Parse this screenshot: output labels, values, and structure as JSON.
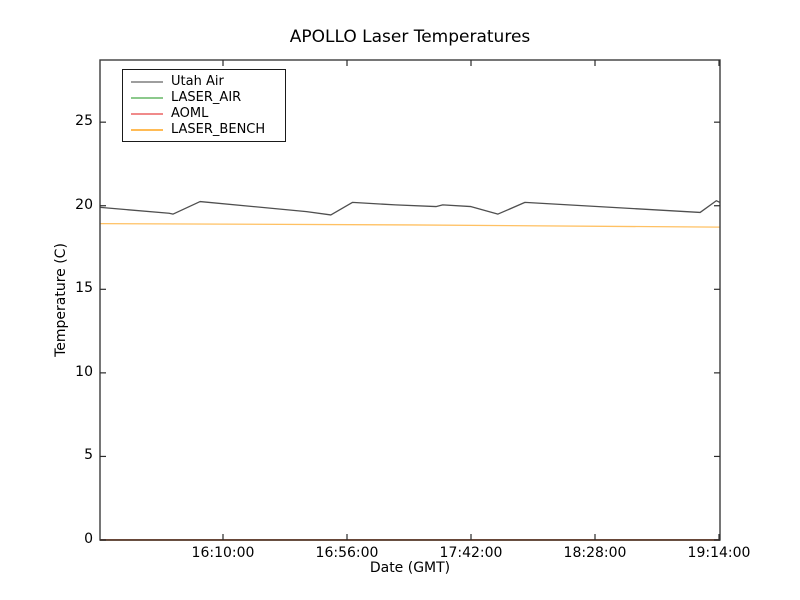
{
  "chart_data": {
    "type": "line",
    "title": "APOLLO Laser Temperatures",
    "xlabel": "Date (GMT)",
    "ylabel": "Temperature (C)",
    "x_ticks": [
      "16:10:00",
      "16:56:00",
      "17:42:00",
      "18:28:00",
      "19:14:00"
    ],
    "x_tick_minutes": [
      970,
      1016,
      1062,
      1108,
      1154
    ],
    "y_ticks": [
      0,
      5,
      10,
      15,
      20,
      25
    ],
    "xlim_minutes": [
      924.37,
      1154.37
    ],
    "ylim": [
      0,
      28.72
    ],
    "grid": false,
    "legend_position": "upper left",
    "frame_color": "#3c3c3c",
    "bottom_spine_blend_color": "#5e4333",
    "series": [
      {
        "name": "Utah Air",
        "color": "#4f4f4f",
        "legend_color": "#9e9e9e",
        "points": [
          [
            "15:24:30",
            19.9
          ],
          [
            "15:50:00",
            19.55
          ],
          [
            "15:51:30",
            19.5
          ],
          [
            "16:01:30",
            20.25
          ],
          [
            "16:41:00",
            19.65
          ],
          [
            "16:50:00",
            19.45
          ],
          [
            "16:58:00",
            20.2
          ],
          [
            "17:14:00",
            20.05
          ],
          [
            "17:29:00",
            19.95
          ],
          [
            "17:31:30",
            20.05
          ],
          [
            "17:42:00",
            19.95
          ],
          [
            "17:52:00",
            19.5
          ],
          [
            "18:02:00",
            20.2
          ],
          [
            "19:07:00",
            19.6
          ],
          [
            "19:13:00",
            20.3
          ],
          [
            "19:14:20",
            20.2
          ]
        ]
      },
      {
        "name": "LASER_AIR",
        "color": "#6fbf6f",
        "legend_color": "#8cc98c",
        "points": [
          [
            "15:24:30",
            0.02
          ],
          [
            "19:14:20",
            0.02
          ]
        ]
      },
      {
        "name": "AOML",
        "color": "#ee6a6a",
        "legend_color": "#f08a8a",
        "points": [
          [
            "15:24:30",
            0.02
          ],
          [
            "19:14:20",
            0.02
          ]
        ]
      },
      {
        "name": "LASER_BENCH",
        "color": "#ffc163",
        "legend_color": "#ffbb55",
        "points": [
          [
            "15:24:30",
            18.93
          ],
          [
            "17:20:00",
            18.85
          ],
          [
            "19:14:20",
            18.72
          ]
        ]
      }
    ]
  }
}
